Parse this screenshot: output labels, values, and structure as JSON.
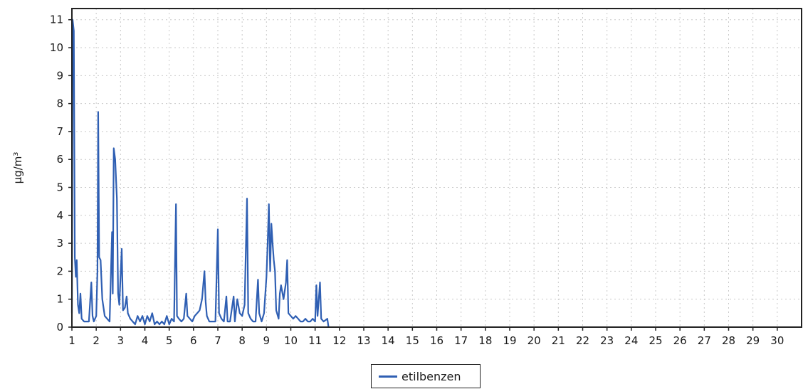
{
  "chart_data": {
    "type": "line",
    "title": "",
    "xlabel": "",
    "ylabel": "µg/m³",
    "xlim": [
      1,
      31
    ],
    "ylim": [
      0,
      11.4
    ],
    "x_ticks": [
      "1",
      "2",
      "3",
      "4",
      "5",
      "6",
      "7",
      "8",
      "9",
      "10",
      "11",
      "12",
      "13",
      "14",
      "15",
      "16",
      "17",
      "18",
      "19",
      "20",
      "21",
      "22",
      "23",
      "24",
      "25",
      "26",
      "27",
      "28",
      "29",
      "30"
    ],
    "y_ticks": [
      "0",
      "1",
      "2",
      "3",
      "4",
      "5",
      "6",
      "7",
      "8",
      "9",
      "10",
      "11"
    ],
    "grid": true,
    "legend_position": "bottom",
    "series": [
      {
        "name": "etilbenzen",
        "color": "#2f5fb3",
        "points": [
          [
            1.0,
            0.5
          ],
          [
            1.03,
            11.0
          ],
          [
            1.08,
            10.6
          ],
          [
            1.12,
            2.5
          ],
          [
            1.16,
            1.8
          ],
          [
            1.2,
            2.4
          ],
          [
            1.25,
            0.8
          ],
          [
            1.3,
            0.5
          ],
          [
            1.35,
            1.2
          ],
          [
            1.4,
            0.3
          ],
          [
            1.5,
            0.2
          ],
          [
            1.6,
            0.2
          ],
          [
            1.7,
            0.2
          ],
          [
            1.8,
            1.6
          ],
          [
            1.85,
            0.4
          ],
          [
            1.9,
            0.2
          ],
          [
            2.0,
            0.4
          ],
          [
            2.05,
            2.0
          ],
          [
            2.08,
            7.7
          ],
          [
            2.12,
            2.5
          ],
          [
            2.18,
            2.4
          ],
          [
            2.25,
            1.0
          ],
          [
            2.35,
            0.4
          ],
          [
            2.45,
            0.3
          ],
          [
            2.55,
            0.2
          ],
          [
            2.65,
            3.4
          ],
          [
            2.68,
            1.2
          ],
          [
            2.72,
            6.4
          ],
          [
            2.78,
            6.0
          ],
          [
            2.85,
            4.6
          ],
          [
            2.9,
            1.2
          ],
          [
            2.95,
            0.8
          ],
          [
            3.05,
            2.8
          ],
          [
            3.1,
            0.6
          ],
          [
            3.18,
            0.7
          ],
          [
            3.25,
            1.1
          ],
          [
            3.3,
            0.5
          ],
          [
            3.4,
            0.3
          ],
          [
            3.5,
            0.2
          ],
          [
            3.6,
            0.1
          ],
          [
            3.7,
            0.4
          ],
          [
            3.8,
            0.2
          ],
          [
            3.9,
            0.4
          ],
          [
            4.0,
            0.1
          ],
          [
            4.1,
            0.4
          ],
          [
            4.2,
            0.2
          ],
          [
            4.3,
            0.5
          ],
          [
            4.4,
            0.1
          ],
          [
            4.5,
            0.2
          ],
          [
            4.6,
            0.1
          ],
          [
            4.7,
            0.2
          ],
          [
            4.8,
            0.1
          ],
          [
            4.9,
            0.4
          ],
          [
            5.0,
            0.1
          ],
          [
            5.1,
            0.3
          ],
          [
            5.2,
            0.2
          ],
          [
            5.28,
            4.4
          ],
          [
            5.32,
            0.4
          ],
          [
            5.4,
            0.3
          ],
          [
            5.5,
            0.2
          ],
          [
            5.6,
            0.3
          ],
          [
            5.7,
            1.2
          ],
          [
            5.75,
            0.4
          ],
          [
            5.85,
            0.3
          ],
          [
            5.95,
            0.2
          ],
          [
            6.05,
            0.4
          ],
          [
            6.15,
            0.5
          ],
          [
            6.25,
            0.6
          ],
          [
            6.35,
            1.0
          ],
          [
            6.45,
            2.0
          ],
          [
            6.5,
            0.9
          ],
          [
            6.55,
            0.4
          ],
          [
            6.65,
            0.2
          ],
          [
            6.8,
            0.2
          ],
          [
            6.9,
            0.2
          ],
          [
            7.0,
            3.5
          ],
          [
            7.05,
            0.5
          ],
          [
            7.15,
            0.3
          ],
          [
            7.25,
            0.2
          ],
          [
            7.35,
            1.1
          ],
          [
            7.4,
            0.2
          ],
          [
            7.5,
            0.2
          ],
          [
            7.65,
            1.1
          ],
          [
            7.7,
            0.2
          ],
          [
            7.8,
            1.0
          ],
          [
            7.9,
            0.5
          ],
          [
            8.0,
            0.4
          ],
          [
            8.1,
            0.8
          ],
          [
            8.2,
            4.6
          ],
          [
            8.25,
            0.5
          ],
          [
            8.35,
            0.3
          ],
          [
            8.45,
            0.2
          ],
          [
            8.55,
            0.2
          ],
          [
            8.65,
            1.7
          ],
          [
            8.7,
            0.5
          ],
          [
            8.8,
            0.2
          ],
          [
            8.9,
            0.5
          ],
          [
            9.0,
            1.8
          ],
          [
            9.05,
            3.0
          ],
          [
            9.1,
            4.4
          ],
          [
            9.15,
            2.0
          ],
          [
            9.2,
            3.7
          ],
          [
            9.25,
            3.0
          ],
          [
            9.3,
            2.4
          ],
          [
            9.35,
            2.0
          ],
          [
            9.4,
            0.6
          ],
          [
            9.5,
            0.3
          ],
          [
            9.55,
            1.2
          ],
          [
            9.6,
            1.5
          ],
          [
            9.7,
            1.0
          ],
          [
            9.8,
            1.6
          ],
          [
            9.85,
            2.4
          ],
          [
            9.9,
            0.5
          ],
          [
            10.0,
            0.4
          ],
          [
            10.1,
            0.3
          ],
          [
            10.2,
            0.4
          ],
          [
            10.3,
            0.3
          ],
          [
            10.4,
            0.2
          ],
          [
            10.5,
            0.2
          ],
          [
            10.6,
            0.3
          ],
          [
            10.7,
            0.2
          ],
          [
            10.8,
            0.2
          ],
          [
            10.9,
            0.3
          ],
          [
            11.0,
            0.2
          ],
          [
            11.05,
            1.5
          ],
          [
            11.1,
            0.4
          ],
          [
            11.2,
            1.6
          ],
          [
            11.25,
            0.3
          ],
          [
            11.35,
            0.2
          ],
          [
            11.5,
            0.3
          ],
          [
            11.55,
            0.0
          ]
        ]
      }
    ]
  }
}
